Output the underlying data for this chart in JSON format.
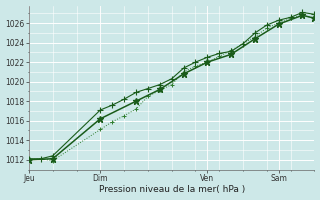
{
  "background_color": "#cde8e8",
  "grid_color": "#ffffff",
  "line_color_dark": "#1a5c1a",
  "line_color_mid": "#2e7d2e",
  "ylim": [
    1011.0,
    1027.8
  ],
  "xlim": [
    0.0,
    1.0
  ],
  "xlabel": "Pression niveau de la mer( hPa )",
  "day_labels": [
    "Jeu",
    "Dim",
    "Ven",
    "Sam"
  ],
  "day_positions": [
    0.0,
    0.25,
    0.625,
    0.875
  ],
  "yticks": [
    1012,
    1014,
    1016,
    1018,
    1020,
    1022,
    1024,
    1026
  ],
  "line1_x": [
    0.0,
    0.042,
    0.083,
    0.25,
    0.292,
    0.333,
    0.375,
    0.417,
    0.458,
    0.5,
    0.542,
    0.583,
    0.625,
    0.667,
    0.708,
    0.75,
    0.792,
    0.833,
    0.875,
    0.917,
    0.958,
    1.0
  ],
  "line1_y": [
    1012.1,
    1012.1,
    1012.4,
    1017.1,
    1017.6,
    1018.2,
    1018.9,
    1019.3,
    1019.7,
    1020.3,
    1021.4,
    1022.0,
    1022.5,
    1022.9,
    1023.1,
    1023.9,
    1025.0,
    1025.8,
    1026.3,
    1026.6,
    1027.1,
    1026.9
  ],
  "line2_x": [
    0.0,
    0.042,
    0.083,
    0.25,
    0.292,
    0.333,
    0.375,
    0.417,
    0.458,
    0.5,
    0.542,
    0.583,
    0.625,
    0.667,
    0.708,
    0.75,
    0.792,
    0.833,
    0.875,
    0.917,
    0.958,
    1.0
  ],
  "line2_y": [
    1012.0,
    1012.1,
    1011.9,
    1015.1,
    1015.9,
    1016.5,
    1017.2,
    1018.5,
    1019.1,
    1019.7,
    1021.0,
    1021.6,
    1022.0,
    1022.6,
    1023.2,
    1023.9,
    1024.6,
    1025.5,
    1026.0,
    1026.5,
    1026.8,
    1026.5
  ],
  "line3_x": [
    0.0,
    0.083,
    0.25,
    0.375,
    0.458,
    0.542,
    0.625,
    0.708,
    0.792,
    0.875,
    0.958,
    1.0
  ],
  "line3_y": [
    1012.0,
    1012.1,
    1016.2,
    1018.0,
    1019.2,
    1020.8,
    1022.0,
    1022.8,
    1024.4,
    1025.9,
    1026.8,
    1026.5
  ]
}
